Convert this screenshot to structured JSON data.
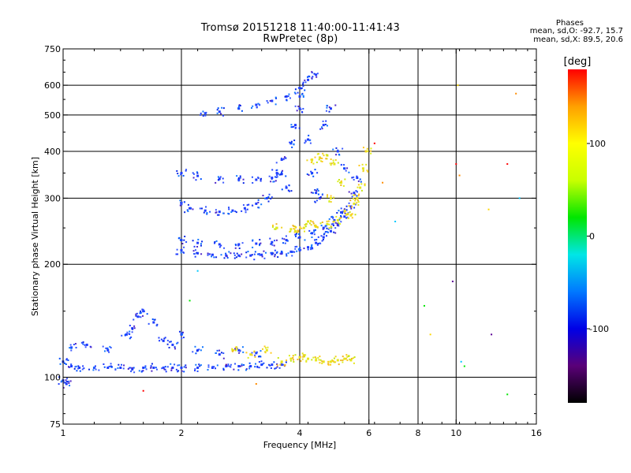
{
  "header": {
    "title_line1": "Tromsø 20151218 11:40:00-11:41:43",
    "title_line2": "RwPretec (8p)",
    "phases_label": "Phases",
    "phases_o": "mean, sd,O: -92.7, 15.7",
    "phases_x": "mean, sd,X: 89.5, 20.6"
  },
  "colors": {
    "frame": "#000000",
    "background": "#ffffff",
    "o_mode": "#1e3cff",
    "x_mode": "#e6e61e",
    "colorbar_stops": [
      "#000000",
      "#5a0078",
      "#0000e6",
      "#0078ff",
      "#00e6e6",
      "#00e600",
      "#c8ff00",
      "#ffff00",
      "#ffa000",
      "#ff0000"
    ]
  },
  "colorbar": {
    "unit": "[deg]",
    "ticks": [
      "100",
      "0",
      "-100"
    ],
    "tick_values": [
      100,
      0,
      -100
    ],
    "range": [
      -180,
      180
    ]
  },
  "chart_data": {
    "type": "scatter",
    "xlabel": "Frequency [MHz]",
    "ylabel": "Stationary phase Virtual Height [km]",
    "xscale": "log2",
    "yscale": "log",
    "xlim": [
      1,
      16
    ],
    "ylim": [
      75,
      750
    ],
    "xticks": [
      1,
      2,
      4,
      6,
      8,
      10,
      16
    ],
    "xtick_labels": [
      "1",
      "2",
      "4",
      "6",
      "8",
      "10",
      "16"
    ],
    "yticks": [
      75,
      100,
      200,
      300,
      400,
      500,
      600,
      750
    ],
    "ytick_labels": [
      "75",
      "100",
      "200",
      "300",
      "400",
      "500",
      "600",
      "750"
    ],
    "grid_x": [
      2,
      4,
      6,
      8,
      10
    ],
    "grid_y": [
      100,
      200,
      300,
      400,
      500,
      600
    ],
    "series": [
      {
        "mode": "O",
        "color": "#1e3cff",
        "points": [
          [
            1.0,
            110
          ],
          [
            1.05,
            107
          ],
          [
            1.1,
            106
          ],
          [
            1.2,
            106
          ],
          [
            1.3,
            106
          ],
          [
            1.4,
            106
          ],
          [
            1.5,
            105
          ],
          [
            1.6,
            106
          ],
          [
            1.7,
            106
          ],
          [
            1.8,
            106
          ],
          [
            1.9,
            106
          ],
          [
            2.0,
            106
          ],
          [
            2.2,
            106
          ],
          [
            2.4,
            106
          ],
          [
            2.6,
            107
          ],
          [
            2.8,
            107
          ],
          [
            3.0,
            107
          ],
          [
            3.2,
            108
          ],
          [
            3.4,
            108
          ],
          [
            3.6,
            108
          ],
          [
            1.05,
            120
          ],
          [
            1.15,
            122
          ],
          [
            1.3,
            118
          ],
          [
            1.45,
            130
          ],
          [
            1.55,
            145
          ],
          [
            1.7,
            140
          ],
          [
            1.9,
            122
          ],
          [
            2.2,
            118
          ],
          [
            2.5,
            115
          ],
          [
            2.8,
            118
          ],
          [
            3.1,
            116
          ],
          [
            1.0,
            98
          ],
          [
            1.02,
            96
          ],
          [
            1.5,
            135
          ],
          [
            1.6,
            150
          ],
          [
            1.8,
            125
          ],
          [
            2.0,
            130
          ],
          [
            2.0,
            218
          ],
          [
            2.2,
            214
          ],
          [
            2.4,
            212
          ],
          [
            2.6,
            211
          ],
          [
            2.8,
            211
          ],
          [
            3.0,
            211
          ],
          [
            3.2,
            212
          ],
          [
            3.4,
            213
          ],
          [
            3.6,
            214
          ],
          [
            3.8,
            216
          ],
          [
            4.0,
            218
          ],
          [
            4.2,
            222
          ],
          [
            4.4,
            228
          ],
          [
            4.6,
            236
          ],
          [
            4.8,
            245
          ],
          [
            5.0,
            255
          ],
          [
            5.2,
            268
          ],
          [
            5.4,
            285
          ],
          [
            5.5,
            310
          ],
          [
            5.6,
            340
          ],
          [
            2.0,
            232
          ],
          [
            2.2,
            228
          ],
          [
            2.5,
            226
          ],
          [
            2.8,
            226
          ],
          [
            3.1,
            227
          ],
          [
            3.4,
            229
          ],
          [
            3.7,
            232
          ],
          [
            4.0,
            236
          ],
          [
            4.3,
            242
          ],
          [
            4.6,
            250
          ],
          [
            4.9,
            262
          ],
          [
            5.1,
            275
          ],
          [
            2.0,
            290
          ],
          [
            2.1,
            282
          ],
          [
            2.3,
            278
          ],
          [
            2.5,
            276
          ],
          [
            2.7,
            278
          ],
          [
            2.9,
            282
          ],
          [
            3.1,
            290
          ],
          [
            3.3,
            300
          ],
          [
            2.0,
            350
          ],
          [
            2.2,
            344
          ],
          [
            2.5,
            338
          ],
          [
            2.8,
            336
          ],
          [
            3.1,
            336
          ],
          [
            3.4,
            340
          ],
          [
            3.6,
            348
          ],
          [
            2.3,
            505
          ],
          [
            2.5,
            510
          ],
          [
            2.8,
            520
          ],
          [
            3.1,
            532
          ],
          [
            3.4,
            545
          ],
          [
            3.7,
            560
          ],
          [
            4.0,
            590
          ],
          [
            4.2,
            620
          ],
          [
            4.4,
            640
          ],
          [
            3.6,
            380
          ],
          [
            3.8,
            420
          ],
          [
            3.9,
            470
          ],
          [
            4.0,
            520
          ],
          [
            4.0,
            560
          ],
          [
            4.2,
            430
          ],
          [
            4.3,
            350
          ],
          [
            4.4,
            310
          ],
          [
            4.5,
            300
          ],
          [
            4.6,
            470
          ],
          [
            4.8,
            520
          ],
          [
            5.0,
            400
          ],
          [
            5.2,
            360
          ],
          [
            3.5,
            350
          ],
          [
            3.7,
            320
          ]
        ]
      },
      {
        "mode": "X",
        "color": "#e6e61e",
        "points": [
          [
            3.6,
            110
          ],
          [
            3.8,
            112
          ],
          [
            4.0,
            113
          ],
          [
            4.2,
            112
          ],
          [
            4.4,
            111
          ],
          [
            4.6,
            110
          ],
          [
            4.8,
            110
          ],
          [
            5.0,
            111
          ],
          [
            5.2,
            112
          ],
          [
            5.4,
            111
          ],
          [
            3.3,
            118
          ],
          [
            3.0,
            115
          ],
          [
            2.7,
            118
          ],
          [
            3.5,
            250
          ],
          [
            3.8,
            248
          ],
          [
            4.1,
            250
          ],
          [
            4.4,
            252
          ],
          [
            4.7,
            256
          ],
          [
            5.0,
            262
          ],
          [
            5.3,
            272
          ],
          [
            5.5,
            290
          ],
          [
            5.7,
            320
          ],
          [
            5.8,
            360
          ],
          [
            5.9,
            400
          ],
          [
            5.6,
            300
          ],
          [
            5.4,
            270
          ],
          [
            4.3,
            380
          ],
          [
            4.5,
            385
          ],
          [
            4.7,
            390
          ],
          [
            4.9,
            370
          ],
          [
            5.1,
            330
          ],
          [
            4.8,
            300
          ],
          [
            4.2,
            260
          ],
          [
            3.9,
            245
          ]
        ]
      }
    ],
    "scattered_points": [
      [
        6.2,
        420
      ],
      [
        6.5,
        330
      ],
      [
        7.0,
        260
      ],
      [
        8.3,
        155
      ],
      [
        8.6,
        130
      ],
      [
        9.8,
        180
      ],
      [
        10.0,
        370
      ],
      [
        10.2,
        345
      ],
      [
        10.3,
        110
      ],
      [
        10.5,
        107
      ],
      [
        12.1,
        280
      ],
      [
        12.3,
        130
      ],
      [
        13.5,
        370
      ],
      [
        14.2,
        570
      ],
      [
        14.5,
        300
      ],
      [
        13.5,
        90
      ],
      [
        10.1,
        600
      ],
      [
        2.6,
        108
      ],
      [
        1.6,
        92
      ],
      [
        3.1,
        96
      ],
      [
        2.2,
        192
      ],
      [
        2.1,
        160
      ]
    ]
  }
}
